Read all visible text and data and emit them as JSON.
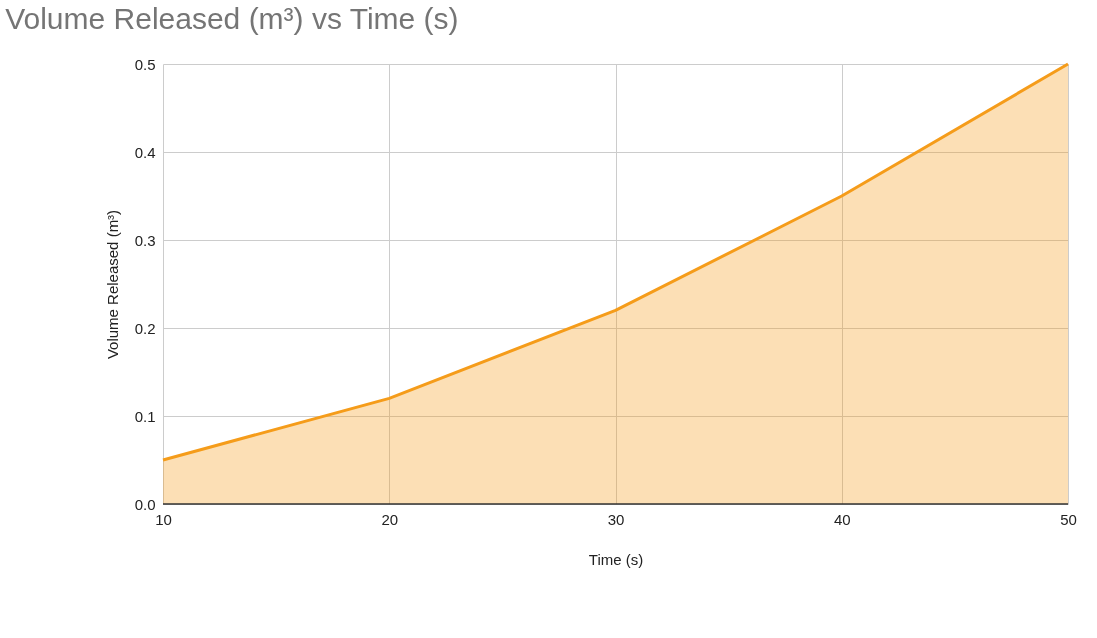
{
  "chart_data": {
    "type": "area",
    "title": "Volume Released (m³) vs Time (s)",
    "xlabel": "Time (s)",
    "ylabel": "Volume Released (m³)",
    "x": [
      10,
      20,
      30,
      40,
      50
    ],
    "series": [
      {
        "color": "#f59c1a",
        "values": [
          0.05,
          0.12,
          0.22,
          0.35,
          0.5
        ]
      }
    ],
    "xlim": [
      10,
      50
    ],
    "xticks": [
      10,
      20,
      30,
      40,
      50
    ],
    "ylim": [
      0,
      0.5
    ],
    "yticks": [
      {
        "value": 0,
        "label": "0.0"
      },
      0.1,
      0.2,
      0.3,
      0.4,
      0.5
    ],
    "grid": true
  }
}
